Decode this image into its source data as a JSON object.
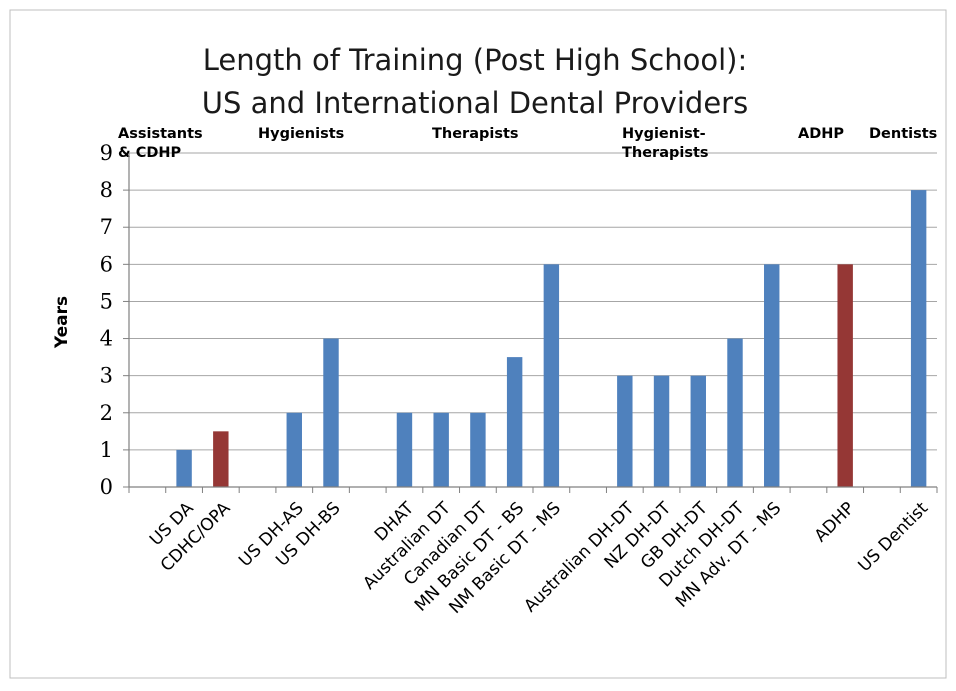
{
  "chart_data": {
    "type": "bar",
    "title_lines": [
      "Length of Training (Post High School):",
      "US and International  Dental Providers"
    ],
    "ylabel": "Years",
    "xlabel": "",
    "ylim": [
      0,
      9
    ],
    "yticks": [
      0,
      1,
      2,
      3,
      4,
      5,
      6,
      7,
      8,
      9
    ],
    "grid": true,
    "legend": "none",
    "group_labels": [
      {
        "lines": [
          "Assistants",
          "& CDHP"
        ]
      },
      {
        "lines": [
          "Hygienists"
        ]
      },
      {
        "lines": [
          "Therapists"
        ]
      },
      {
        "lines": [
          "Hygienist-",
          "Therapists"
        ]
      },
      {
        "lines": [
          "ADHP"
        ]
      },
      {
        "lines": [
          "Dentists"
        ]
      }
    ],
    "bars": [
      {
        "label": "US DA",
        "value": 1,
        "color": "#4f81bd"
      },
      {
        "label": "CDHC/OPA",
        "value": 1.5,
        "color": "#953735"
      },
      {
        "label": "US DH-AS",
        "value": 2,
        "color": "#4f81bd"
      },
      {
        "label": "US DH-BS",
        "value": 4,
        "color": "#4f81bd"
      },
      {
        "label": "DHAT",
        "value": 2,
        "color": "#4f81bd"
      },
      {
        "label": "Australian DT",
        "value": 2,
        "color": "#4f81bd"
      },
      {
        "label": "Canadian DT",
        "value": 2,
        "color": "#4f81bd"
      },
      {
        "label": "MN Basic DT - BS",
        "value": 3.5,
        "color": "#4f81bd"
      },
      {
        "label": "NM Basic DT - MS",
        "value": 6,
        "color": "#4f81bd"
      },
      {
        "label": "Australian DH-DT",
        "value": 3,
        "color": "#4f81bd"
      },
      {
        "label": "NZ DH-DT",
        "value": 3,
        "color": "#4f81bd"
      },
      {
        "label": "GB DH-DT",
        "value": 3,
        "color": "#4f81bd"
      },
      {
        "label": "Dutch DH-DT",
        "value": 4,
        "color": "#4f81bd"
      },
      {
        "label": "MN Adv. DT - MS",
        "value": 6,
        "color": "#4f81bd"
      },
      {
        "label": "ADHP",
        "value": 6,
        "color": "#953735"
      },
      {
        "label": "US Dentist",
        "value": 8,
        "color": "#4f81bd"
      }
    ],
    "colors": {
      "primary": "#4f81bd",
      "highlight": "#953735",
      "grid": "#a6a6a6",
      "border": "#bfbfbf"
    }
  }
}
